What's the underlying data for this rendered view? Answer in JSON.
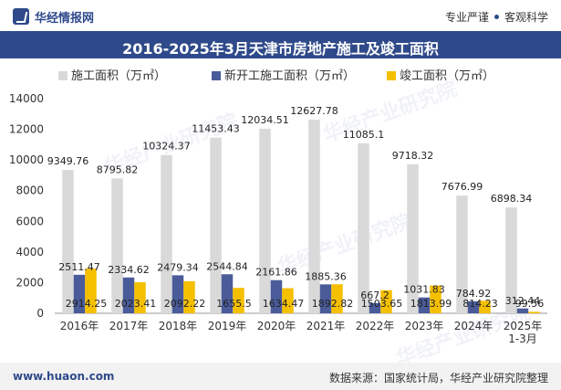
{
  "header": {
    "brand": "华经情报网",
    "slogan_left": "专业严谨",
    "slogan_right": "客观科学"
  },
  "colors": {
    "brand": "#2f4a8a",
    "series": [
      "#d9d9d9",
      "#4a5b9a",
      "#f5c000"
    ]
  },
  "chart_data": {
    "type": "bar",
    "title": "2016-2025年3月天津市房地产施工及竣工面积",
    "categories": [
      "2016年",
      "2017年",
      "2018年",
      "2019年",
      "2020年",
      "2021年",
      "2022年",
      "2023年",
      "2024年",
      "2025年\n1-3月"
    ],
    "series": [
      {
        "name": "施工面积（万㎡）",
        "values": [
          9349.76,
          8795.82,
          10324.37,
          11453.43,
          12034.51,
          12627.78,
          11085.1,
          9718.32,
          7676.99,
          6898.34
        ]
      },
      {
        "name": "新开工施工面积（万㎡）",
        "values": [
          2511.47,
          2334.62,
          2479.34,
          2544.84,
          2161.86,
          1885.36,
          667.2,
          1031.83,
          784.92,
          312.44
        ]
      },
      {
        "name": "竣工面积（万㎡）",
        "values": [
          2914.25,
          2023.41,
          2092.22,
          1655.5,
          1634.47,
          1892.82,
          1503.65,
          1813.99,
          814.23,
          99.56
        ]
      }
    ],
    "ylim": [
      0,
      14000
    ],
    "yticks": [
      0,
      2000,
      4000,
      6000,
      8000,
      10000,
      12000,
      14000
    ],
    "xlabel": "",
    "ylabel": "",
    "grid": false,
    "legend": "top-center"
  },
  "watermarks": [
    "华经产业研究院",
    "华经产业研究院",
    "华经产业研究院",
    "华经产业研究院"
  ],
  "footer": {
    "site": "www.huaon.com",
    "source": "数据来源：国家统计局，华经产业研究院整理"
  }
}
